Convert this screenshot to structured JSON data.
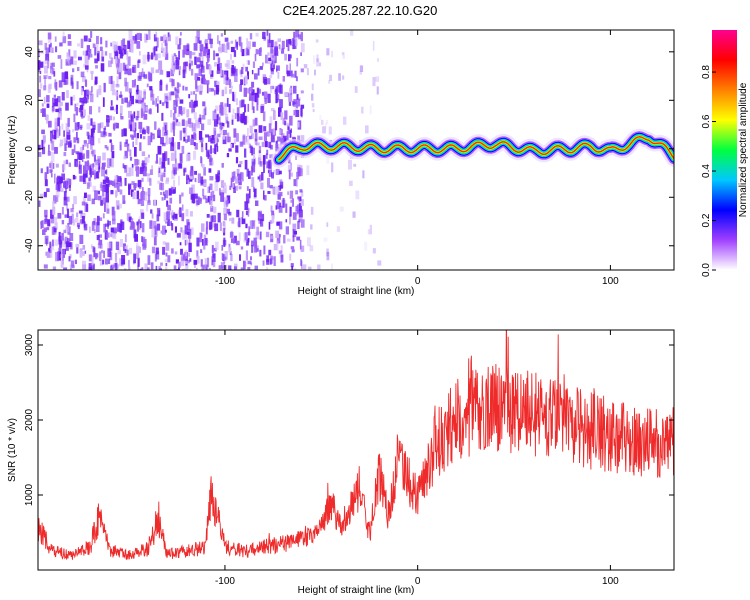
{
  "title": "C2E4.2025.287.22.10.G20",
  "colors": {
    "snr_line": "#ee2a2a",
    "colorbar_stops": [
      "#ffffff",
      "#a040ff",
      "#0000ff",
      "#00c8ff",
      "#00ff40",
      "#ffff00",
      "#ff8000",
      "#ff0000",
      "#ff0090"
    ]
  },
  "chart_data": [
    {
      "type": "heatmap",
      "xlabel": "Height of straight line (km)",
      "ylabel": "Frequency (Hz)",
      "xlim": [
        -197,
        133
      ],
      "ylim": [
        -50,
        49
      ],
      "xticks": [
        -100,
        0,
        100
      ],
      "yticks": [
        -40,
        -20,
        0,
        20,
        40
      ],
      "colorbar": {
        "label": "Normalized spectral amplitude",
        "range": [
          0,
          0.97
        ],
        "ticks": [
          0.0,
          0.2,
          0.4,
          0.6,
          0.8
        ]
      },
      "noise_region": {
        "x_from": -197,
        "x_to": -60,
        "amplitude": 0.12
      },
      "signal_trace": {
        "x_from": -72,
        "x_to": 133,
        "center_hz": 0,
        "peak_amplitude": 0.97,
        "points": [
          [
            -72,
            -3
          ],
          [
            -60,
            1
          ],
          [
            -40,
            1
          ],
          [
            -20,
            0
          ],
          [
            0,
            0
          ],
          [
            20,
            0
          ],
          [
            40,
            2
          ],
          [
            60,
            -1
          ],
          [
            80,
            0
          ],
          [
            90,
            1
          ],
          [
            100,
            -1
          ],
          [
            110,
            2
          ],
          [
            120,
            5
          ],
          [
            133,
            -3
          ]
        ]
      }
    },
    {
      "type": "line",
      "xlabel": "Height of straight line (km)",
      "ylabel": "SNR (10 * v/v)",
      "xlim": [
        -197,
        133
      ],
      "ylim": [
        0,
        3200
      ],
      "xticks": [
        -100,
        0,
        100
      ],
      "yticks": [
        1000,
        2000,
        3000
      ],
      "series": [
        {
          "x": [
            -197,
            -190,
            -180,
            -170,
            -165,
            -160,
            -150,
            -140,
            -135,
            -130,
            -120,
            -110,
            -107,
            -100,
            -90,
            -80,
            -70,
            -60,
            -50,
            -45,
            -40,
            -30,
            -25,
            -20,
            -15,
            -10,
            -5,
            0,
            10,
            20,
            30,
            40,
            50,
            60,
            70,
            80,
            90,
            100,
            110,
            120,
            133
          ],
          "y": [
            600,
            250,
            200,
            300,
            750,
            250,
            200,
            280,
            650,
            220,
            250,
            300,
            1100,
            300,
            250,
            300,
            350,
            400,
            550,
            900,
            600,
            1100,
            450,
            1300,
            700,
            1500,
            1200,
            1000,
            1700,
            2000,
            2100,
            2200,
            2150,
            2100,
            2000,
            1950,
            1850,
            1800,
            1750,
            1700,
            1700
          ]
        }
      ]
    }
  ]
}
